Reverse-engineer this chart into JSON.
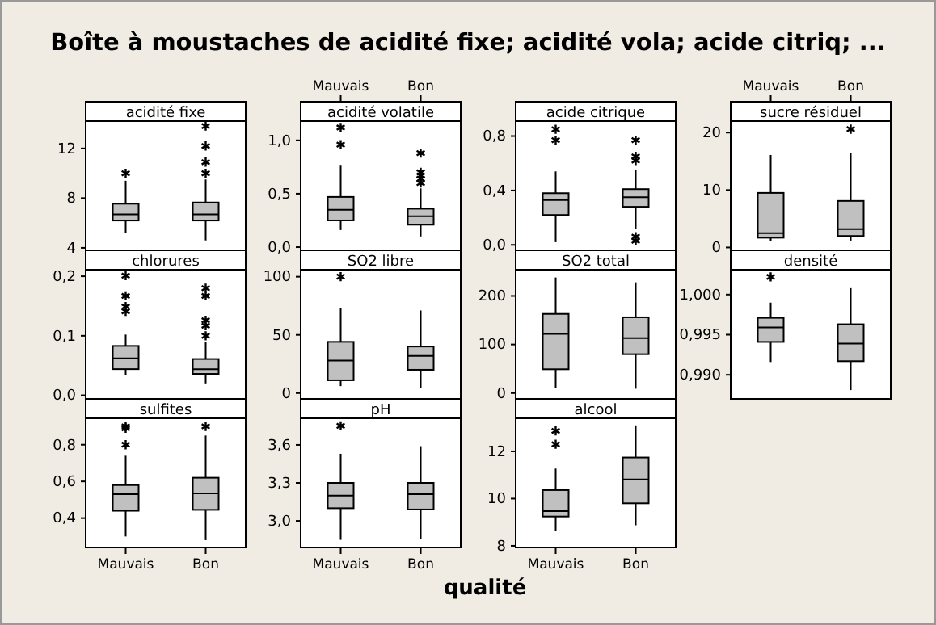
{
  "chart_data": [
    {
      "type": "box",
      "title": "acidité fixe",
      "categories": [
        null,
        null
      ],
      "ylim": [
        3.8,
        14.2
      ],
      "yticks": [
        4,
        8,
        12
      ],
      "tick_labels": "y",
      "annotations": [
        "Boîte à moustaches de acidité fixe; acidité vola; acide citriq; ...",
        "qualité"
      ],
      "boxes": [
        {
          "low": 5.2,
          "q1": 6.2,
          "median": 6.7,
          "q3": 7.55,
          "high": 9.4,
          "outliers": [
            10.0
          ]
        },
        {
          "low": 4.6,
          "q1": 6.2,
          "median": 6.7,
          "q3": 7.65,
          "high": 9.5,
          "outliers": [
            10.0,
            10.9,
            12.2,
            13.8
          ]
        }
      ]
    },
    {
      "type": "box",
      "title": "acidité volatile",
      "categories": [
        "Mauvais",
        "Bon"
      ],
      "ylim": [
        -0.03,
        1.18
      ],
      "yticks": [
        {
          "value": 0,
          "label": "0,0"
        },
        {
          "value": 0.5,
          "label": "0,5"
        },
        {
          "value": 1,
          "label": "1,0"
        }
      ],
      "boxes": [
        {
          "low": 0.16,
          "q1": 0.25,
          "median": 0.35,
          "q3": 0.47,
          "high": 0.77,
          "outliers": [
            0.96,
            1.12
          ]
        },
        {
          "low": 0.1,
          "q1": 0.21,
          "median": 0.29,
          "q3": 0.36,
          "high": 0.55,
          "outliers": [
            0.6,
            0.64,
            0.67,
            0.7,
            0.88
          ]
        }
      ]
    },
    {
      "type": "box",
      "title": "acide citrique",
      "categories": [
        null,
        null
      ],
      "ylim": [
        -0.04,
        0.91
      ],
      "yticks": [
        {
          "value": 0,
          "label": "0,0"
        },
        {
          "value": 0.4,
          "label": "0,4"
        },
        {
          "value": 0.8,
          "label": "0,8"
        }
      ],
      "tick_labels": "y",
      "boxes": [
        {
          "low": 0.02,
          "q1": 0.22,
          "median": 0.33,
          "q3": 0.38,
          "high": 0.54,
          "outliers": [
            0.77,
            0.85
          ]
        },
        {
          "low": 0.12,
          "q1": 0.28,
          "median": 0.35,
          "q3": 0.41,
          "high": 0.55,
          "outliers": [
            0.03,
            0.06,
            0.62,
            0.65,
            0.77
          ]
        }
      ]
    },
    {
      "type": "box",
      "title": "sucre résiduel",
      "categories": [
        "Mauvais",
        "Bon"
      ],
      "ylim": [
        -0.5,
        22
      ],
      "yticks": [
        0,
        10,
        20
      ],
      "boxes": [
        {
          "low": 1.1,
          "q1": 1.7,
          "median": 2.5,
          "q3": 9.5,
          "high": 16.1
        },
        {
          "low": 1.2,
          "q1": 2.0,
          "median": 3.2,
          "q3": 8.1,
          "high": 16.4,
          "outliers": [
            20.6
          ]
        }
      ]
    },
    {
      "type": "box",
      "title": "chlorures",
      "categories": [
        null,
        null
      ],
      "ylim": [
        -0.006,
        0.211
      ],
      "yticks": [
        {
          "value": 0,
          "label": "0,0"
        },
        {
          "value": 0.1,
          "label": "0,1"
        },
        {
          "value": 0.2,
          "label": "0,2"
        }
      ],
      "tick_labels": "y",
      "boxes": [
        {
          "low": 0.034,
          "q1": 0.044,
          "median": 0.062,
          "q3": 0.083,
          "high": 0.102,
          "outliers": [
            0.141,
            0.149,
            0.167,
            0.201
          ]
        },
        {
          "low": 0.02,
          "q1": 0.036,
          "median": 0.044,
          "q3": 0.061,
          "high": 0.09,
          "outliers": [
            0.1,
            0.117,
            0.126,
            0.167,
            0.18
          ]
        }
      ]
    },
    {
      "type": "box",
      "title": "SO2 libre",
      "categories": [
        null,
        null
      ],
      "ylim": [
        -5,
        106
      ],
      "yticks": [
        0,
        50,
        100
      ],
      "tick_labels": "y",
      "boxes": [
        {
          "low": 6,
          "q1": 11,
          "median": 28,
          "q3": 44,
          "high": 73,
          "outliers": [
            100
          ]
        },
        {
          "low": 4,
          "q1": 20,
          "median": 32,
          "q3": 40,
          "high": 71
        }
      ]
    },
    {
      "type": "box",
      "title": "SO2 total",
      "categories": [
        null,
        null
      ],
      "ylim": [
        -12,
        254
      ],
      "yticks": [
        0,
        100,
        200
      ],
      "tick_labels": "y",
      "boxes": [
        {
          "low": 11,
          "q1": 49,
          "median": 122,
          "q3": 163,
          "high": 238
        },
        {
          "low": 9,
          "q1": 80,
          "median": 113,
          "q3": 156,
          "high": 228
        }
      ]
    },
    {
      "type": "box",
      "title": "densité",
      "categories": [
        null,
        null
      ],
      "ylim": [
        0.987,
        1.0031
      ],
      "yticks": [
        {
          "value": 0.99,
          "label": "0,990"
        },
        {
          "value": 0.995,
          "label": "0,995"
        },
        {
          "value": 1,
          "label": "1,000"
        }
      ],
      "tick_labels": "y",
      "boxes": [
        {
          "low": 0.9916,
          "q1": 0.9941,
          "median": 0.9959,
          "q3": 0.9971,
          "high": 0.999,
          "outliers": [
            1.0022
          ]
        },
        {
          "low": 0.9881,
          "q1": 0.9917,
          "median": 0.9939,
          "q3": 0.9963,
          "high": 1.0008
        }
      ]
    },
    {
      "type": "box",
      "title": "sulfites",
      "categories": [
        "Mauvais",
        "Bon"
      ],
      "ylim": [
        0.24,
        0.944
      ],
      "yticks": [
        {
          "value": 0.4,
          "label": "0,4"
        },
        {
          "value": 0.6,
          "label": "0,6"
        },
        {
          "value": 0.8,
          "label": "0,8"
        }
      ],
      "boxes": [
        {
          "low": 0.3,
          "q1": 0.44,
          "median": 0.53,
          "q3": 0.58,
          "high": 0.74,
          "outliers": [
            0.8,
            0.89,
            0.9
          ]
        },
        {
          "low": 0.28,
          "q1": 0.445,
          "median": 0.535,
          "q3": 0.62,
          "high": 0.85,
          "outliers": [
            0.9
          ]
        }
      ]
    },
    {
      "type": "box",
      "title": "pH",
      "categories": [
        "Mauvais",
        "Bon"
      ],
      "ylim": [
        2.79,
        3.81
      ],
      "yticks": [
        {
          "value": 3,
          "label": "3,0"
        },
        {
          "value": 3.3,
          "label": "3,3"
        },
        {
          "value": 3.6,
          "label": "3,6"
        }
      ],
      "boxes": [
        {
          "low": 2.85,
          "q1": 3.1,
          "median": 3.2,
          "q3": 3.3,
          "high": 3.53,
          "outliers": [
            3.75
          ]
        },
        {
          "low": 2.86,
          "q1": 3.09,
          "median": 3.21,
          "q3": 3.3,
          "high": 3.59
        }
      ]
    },
    {
      "type": "box",
      "title": "alcool",
      "categories": [
        "Mauvais",
        "Bon"
      ],
      "ylim": [
        7.93,
        13.4
      ],
      "yticks": [
        8,
        10,
        12
      ],
      "boxes": [
        {
          "low": 8.63,
          "q1": 9.24,
          "median": 9.47,
          "q3": 10.36,
          "high": 11.27,
          "outliers": [
            12.3,
            12.87
          ]
        },
        {
          "low": 8.87,
          "q1": 9.8,
          "median": 10.81,
          "q3": 11.74,
          "high": 13.1
        }
      ]
    }
  ]
}
